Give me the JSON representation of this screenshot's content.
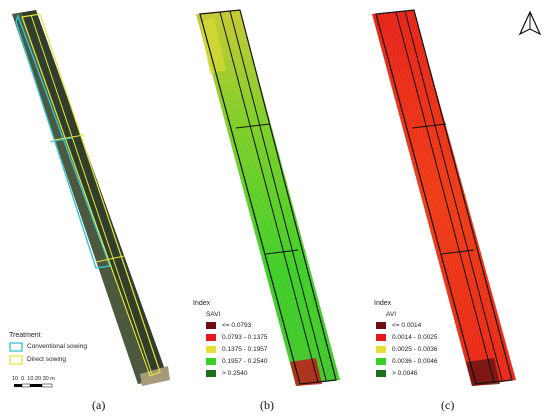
{
  "panel_a": {
    "legend_title": "Treatment",
    "items": [
      {
        "label": "Conventional sowing",
        "color": "#2ec6d6"
      },
      {
        "label": "Direct sowing",
        "color": "#e6e63a"
      }
    ],
    "scale_label": "10  0  10 20 30 m"
  },
  "panel_b": {
    "legend_title": "Index",
    "index_name": "SAVI",
    "classes": [
      {
        "label": "<= 0.0793",
        "color": "#6b0f12"
      },
      {
        "label": "0.0793 - 0.1375",
        "color": "#e8171b"
      },
      {
        "label": "0.1375 - 0.1957",
        "color": "#e5e03a"
      },
      {
        "label": "0.1957 - 0.2540",
        "color": "#35d02c"
      },
      {
        "label": "> 0.2540",
        "color": "#1f6e1c"
      }
    ]
  },
  "panel_c": {
    "legend_title": "Index",
    "index_name": "AVI",
    "classes": [
      {
        "label": "<= 0.0014",
        "color": "#6b0f12"
      },
      {
        "label": "0.0014 - 0.0025",
        "color": "#e8171b"
      },
      {
        "label": "0.0025 - 0.0036",
        "color": "#e5e03a"
      },
      {
        "label": "0.0036 - 0.0046",
        "color": "#35d02c"
      },
      {
        "label": "> 0.0046",
        "color": "#1f6e1c"
      }
    ]
  },
  "captions": [
    "(a)",
    "(b)",
    "(c)"
  ],
  "north_arrow": "north-arrow-icon"
}
